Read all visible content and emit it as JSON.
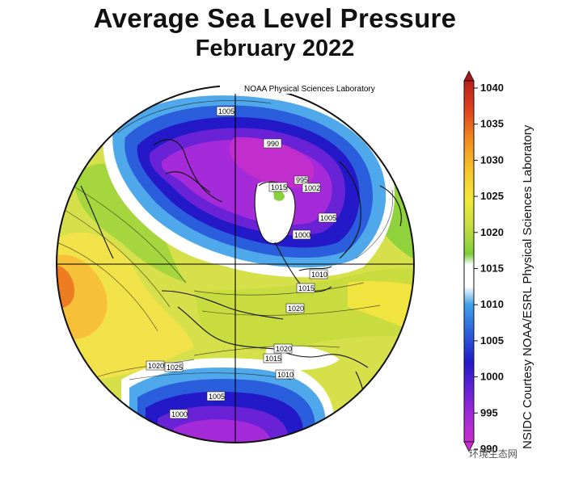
{
  "title": "Average Sea Level Pressure",
  "subtitle": "February 2022",
  "map_credit": "NOAA Physical Sciences Laboratory",
  "side_credit": "NSIDC Courtesy NOAA/ESRL Physical Sciences Laboratory",
  "watermark": "环境生态网",
  "colorbar": {
    "labels": [
      "1040",
      "1035",
      "1030",
      "1025",
      "1020",
      "1015",
      "1010",
      "1005",
      "1000",
      "995",
      "990"
    ],
    "colors": [
      "#d8301a",
      "#f0751e",
      "#f7b731",
      "#f5e43a",
      "#c9dc3f",
      "#7fcf3a",
      "#ffffff",
      "#4aa3e6",
      "#2a5bdb",
      "#2519c9",
      "#6a22d6",
      "#a52ad9",
      "#c02ccf"
    ]
  },
  "contour_labels": [
    {
      "text": "1005"
    },
    {
      "text": "990"
    },
    {
      "text": "1015"
    },
    {
      "text": "995"
    },
    {
      "text": "1002"
    },
    {
      "text": "1005"
    },
    {
      "text": "1000"
    },
    {
      "text": "1010"
    },
    {
      "text": "1015"
    },
    {
      "text": "1020"
    },
    {
      "text": "1020"
    },
    {
      "text": "1015"
    },
    {
      "text": "1010"
    },
    {
      "text": "1020"
    },
    {
      "text": "1025"
    },
    {
      "text": "1005"
    },
    {
      "text": "1000"
    }
  ]
}
